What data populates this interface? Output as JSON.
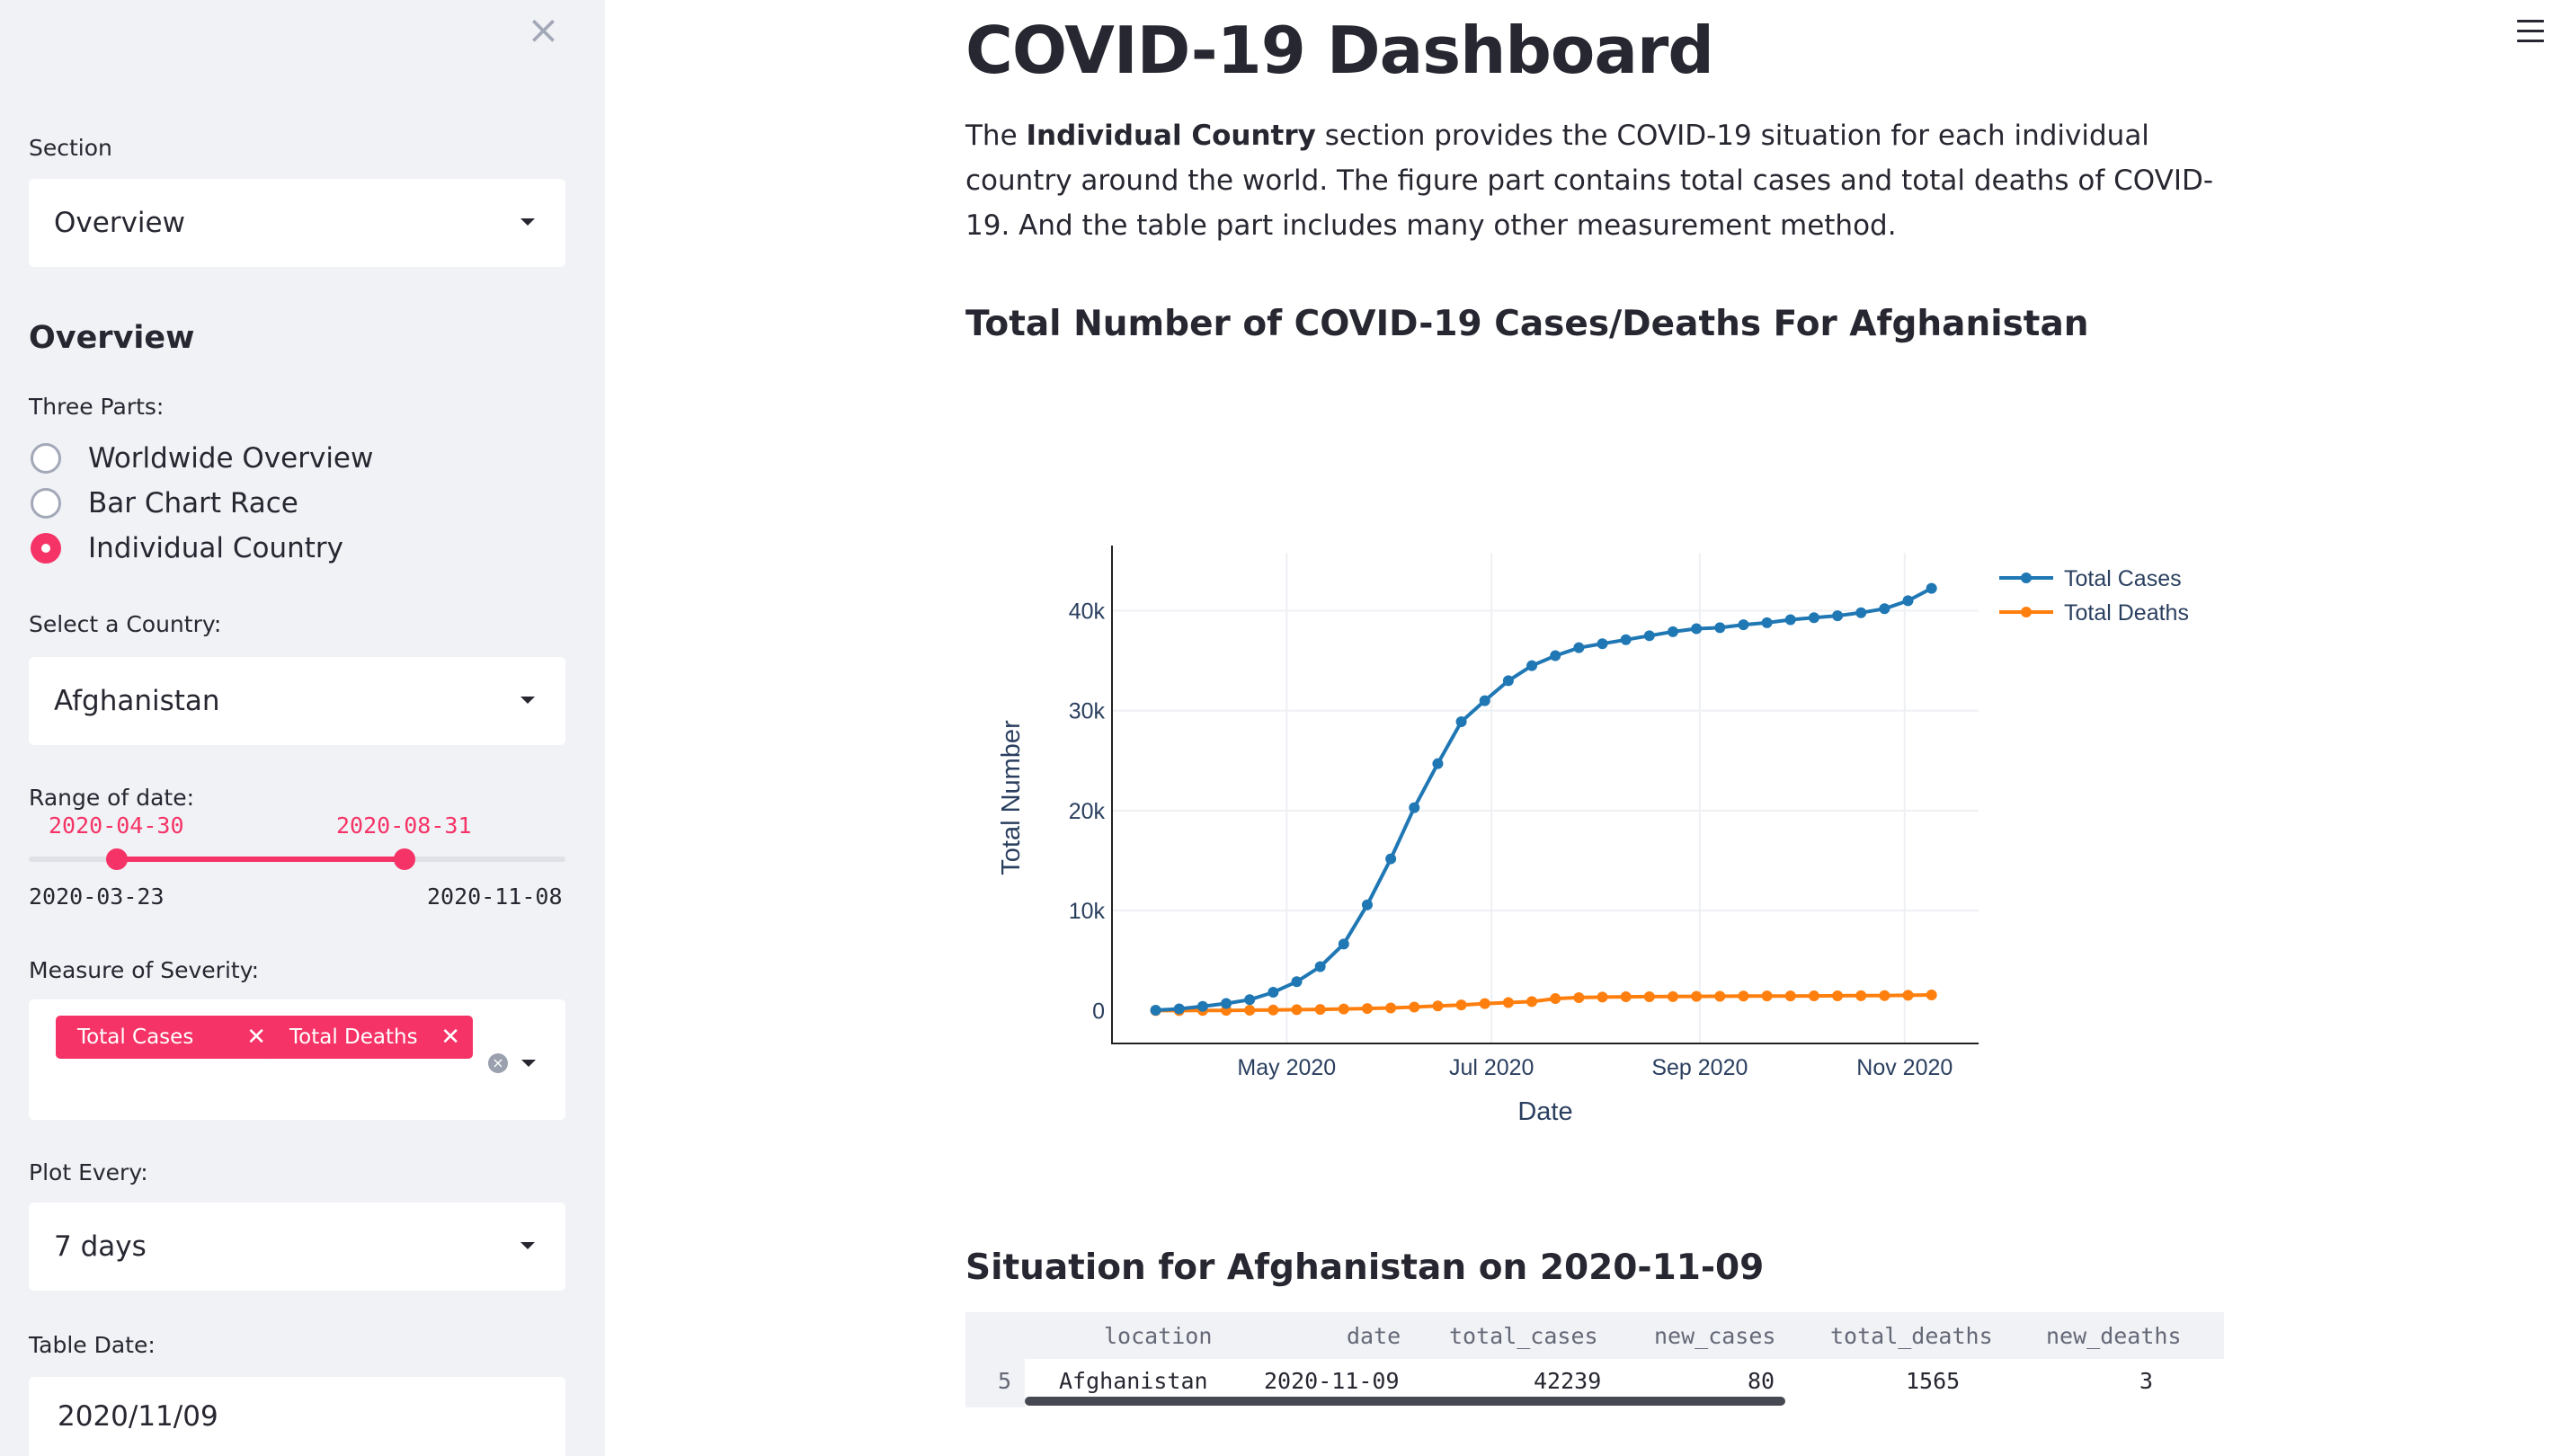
{
  "sidebar": {
    "close_icon": "close-icon",
    "section_label": "Section",
    "section_value": "Overview",
    "heading": "Overview",
    "parts_label": "Three Parts:",
    "parts": [
      {
        "label": "Worldwide Overview",
        "selected": false
      },
      {
        "label": "Bar Chart Race",
        "selected": false
      },
      {
        "label": "Individual Country",
        "selected": true
      }
    ],
    "country_label": "Select a Country:",
    "country_value": "Afghanistan",
    "range_label": "Range of date:",
    "range_start": "2020-04-30",
    "range_end": "2020-08-31",
    "range_min": "2020-03-23",
    "range_max": "2020-11-08",
    "severity_label": "Measure of Severity:",
    "severity_tags": [
      "Total Cases",
      "Total Deaths"
    ],
    "plot_every_label": "Plot Every:",
    "plot_every_value": "7 days",
    "table_date_label": "Table Date:",
    "table_date_value": "2020/11/09"
  },
  "main": {
    "title": "COVID-19 Dashboard",
    "intro_pre": "The ",
    "intro_bold": "Individual Country",
    "intro_post": " section provides the COVID-19 situation for each individual country around the world. The figure part contains total cases and total deaths of COVID-19. And the table part includes many other measurement method.",
    "chart_title": "Total Number of COVID-19 Cases/Deaths For Afghanistan",
    "table_title": "Situation for Afghanistan on 2020-11-09",
    "table": {
      "columns": [
        "location",
        "date",
        "total_cases",
        "new_cases",
        "total_deaths",
        "new_deaths"
      ],
      "rows": [
        {
          "index": "5",
          "cells": [
            "Afghanistan",
            "2020-11-09",
            "42239",
            "80",
            "1565",
            "3"
          ]
        }
      ]
    }
  },
  "colors": {
    "accent": "#f63366",
    "sidebar_bg": "#f0f2f6",
    "cases": "#1f77b4",
    "deaths": "#ff7f0e"
  },
  "chart_data": {
    "type": "line",
    "xlabel": "Date",
    "ylabel": "Total Number",
    "x_ticks": [
      "May 2020",
      "Jul 2020",
      "Sep 2020",
      "Nov 2020"
    ],
    "y_ticks": [
      "0",
      "10k",
      "20k",
      "30k",
      "40k"
    ],
    "ylim": [
      -3200,
      45800
    ],
    "xlim": [
      "2020-03-10",
      "2020-11-23"
    ],
    "x": [
      "2020-03-23",
      "2020-03-30",
      "2020-04-06",
      "2020-04-13",
      "2020-04-20",
      "2020-04-27",
      "2020-05-04",
      "2020-05-11",
      "2020-05-18",
      "2020-05-25",
      "2020-06-01",
      "2020-06-08",
      "2020-06-15",
      "2020-06-22",
      "2020-06-29",
      "2020-07-06",
      "2020-07-13",
      "2020-07-20",
      "2020-07-27",
      "2020-08-03",
      "2020-08-10",
      "2020-08-17",
      "2020-08-24",
      "2020-08-31",
      "2020-09-07",
      "2020-09-14",
      "2020-09-21",
      "2020-09-28",
      "2020-10-05",
      "2020-10-12",
      "2020-10-19",
      "2020-10-26",
      "2020-11-02",
      "2020-11-09"
    ],
    "series": [
      {
        "name": "Total Cases",
        "color": "#1f77b4",
        "values": [
          40,
          170,
          420,
          710,
          1090,
          1830,
          2890,
          4400,
          6660,
          10580,
          15180,
          20300,
          24700,
          28900,
          31000,
          33000,
          34500,
          35500,
          36300,
          36700,
          37100,
          37500,
          37900,
          38200,
          38300,
          38600,
          38800,
          39100,
          39300,
          39500,
          39800,
          40200,
          41000,
          42239
        ]
      },
      {
        "name": "Total Deaths",
        "color": "#ff7f0e",
        "values": [
          1,
          4,
          14,
          23,
          36,
          60,
          95,
          120,
          160,
          210,
          260,
          350,
          460,
          560,
          700,
          800,
          900,
          1200,
          1300,
          1350,
          1380,
          1390,
          1400,
          1420,
          1430,
          1450,
          1460,
          1460,
          1470,
          1480,
          1490,
          1500,
          1530,
          1565
        ]
      }
    ],
    "legend": "top-right",
    "grid": true
  }
}
